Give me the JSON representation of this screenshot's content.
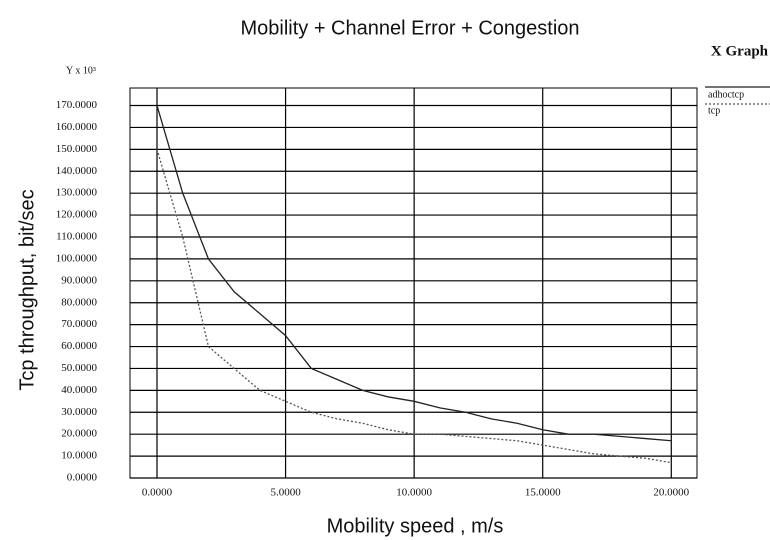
{
  "chart_data": {
    "type": "line",
    "title": "Mobility + Channel Error + Congestion",
    "window_title": "X Graph",
    "y_unit": "Y x 10³",
    "x_label": "Mobility speed , m/s",
    "y_label": "Tcp throughput, bit/sec",
    "x": [
      0,
      1,
      2,
      3,
      4,
      5,
      6,
      7,
      8,
      9,
      10,
      11,
      12,
      13,
      14,
      15,
      16,
      17,
      18,
      19,
      20
    ],
    "series": [
      {
        "name": "adhoctcp",
        "color": "#222222",
        "style": "solid",
        "values": [
          170,
          130,
          100,
          85,
          75,
          65,
          50,
          45,
          40,
          37,
          35,
          32,
          30,
          27,
          25,
          22,
          20,
          20,
          19,
          18,
          17
        ]
      },
      {
        "name": "tcp",
        "color": "#555555",
        "style": "dotted",
        "values": [
          150,
          110,
          60,
          50,
          40,
          35,
          30,
          27,
          25,
          22,
          20,
          20,
          19,
          18,
          17,
          15,
          13,
          11,
          10,
          9,
          7
        ]
      }
    ],
    "xlim": [
      -1.05,
      21
    ],
    "ylim": [
      0,
      178
    ],
    "xticks": [
      {
        "value": 0,
        "label": "0.0000"
      },
      {
        "value": 5,
        "label": "5.0000"
      },
      {
        "value": 10,
        "label": "10.0000"
      },
      {
        "value": 15,
        "label": "15.0000"
      },
      {
        "value": 20,
        "label": "20.0000"
      }
    ],
    "yticks": [
      {
        "value": 0,
        "label": "0.0000"
      },
      {
        "value": 10,
        "label": "10.0000"
      },
      {
        "value": 20,
        "label": "20.0000"
      },
      {
        "value": 30,
        "label": "30.0000"
      },
      {
        "value": 40,
        "label": "40.0000"
      },
      {
        "value": 50,
        "label": "50.0000"
      },
      {
        "value": 60,
        "label": "60.0000"
      },
      {
        "value": 70,
        "label": "70.0000"
      },
      {
        "value": 80,
        "label": "80.0000"
      },
      {
        "value": 90,
        "label": "90.0000"
      },
      {
        "value": 100,
        "label": "100.0000"
      },
      {
        "value": 110,
        "label": "110.0000"
      },
      {
        "value": 120,
        "label": "120.0000"
      },
      {
        "value": 130,
        "label": "130.0000"
      },
      {
        "value": 140,
        "label": "140.0000"
      },
      {
        "value": 150,
        "label": "150.0000"
      },
      {
        "value": 160,
        "label": "160.0000"
      },
      {
        "value": 170,
        "label": "170.0000"
      }
    ],
    "grid": true,
    "legend": "top-right"
  }
}
